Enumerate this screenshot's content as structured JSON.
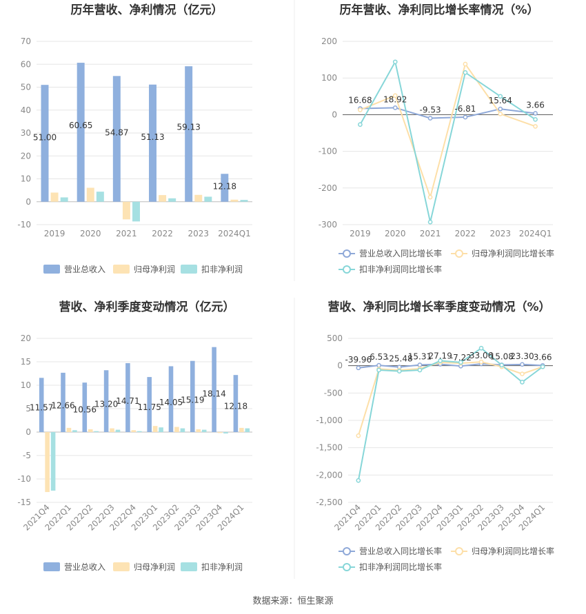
{
  "source_label": "数据来源：恒生聚源",
  "colors": {
    "revenue": "#8fb0de",
    "parent_profit": "#fde3b4",
    "deducted_profit": "#a6e0e2",
    "rev_line": "#8ea8d8",
    "parent_line": "#fddfa8",
    "deducted_line": "#86d6d8"
  },
  "chart_data": [
    {
      "id": "annual-amount",
      "type": "bar",
      "title": "历年营收、净利情况（亿元）",
      "categories": [
        "2019",
        "2020",
        "2021",
        "2022",
        "2023",
        "2024Q1"
      ],
      "series": [
        {
          "name": "营业总收入",
          "values": [
            51.0,
            60.65,
            54.87,
            51.13,
            59.13,
            12.18
          ]
        },
        {
          "name": "归母净利润",
          "values": [
            4.0,
            6.1,
            -7.7,
            2.9,
            3.0,
            0.9
          ]
        },
        {
          "name": "扣非净利润",
          "values": [
            1.9,
            4.4,
            -8.6,
            1.5,
            2.2,
            0.8
          ]
        }
      ],
      "data_labels": [
        "51.00",
        "60.65",
        "54.87",
        "51.13",
        "59.13",
        "12.18"
      ],
      "ylim": [
        -10,
        70
      ],
      "yticks": [
        -10,
        0,
        10,
        20,
        30,
        40,
        50,
        60,
        70
      ],
      "xlabel": "",
      "ylabel": "",
      "legend_position": "bottom"
    },
    {
      "id": "annual-growth",
      "type": "line",
      "title": "历年营收、净利同比增长率情况（%）",
      "categories": [
        "2019",
        "2020",
        "2021",
        "2022",
        "2023",
        "2024Q1"
      ],
      "series": [
        {
          "name": "营业总收入同比增长率",
          "values": [
            16.68,
            18.92,
            -9.53,
            -6.81,
            15.64,
            3.66
          ]
        },
        {
          "name": "归母净利润同比增长率",
          "values": [
            13,
            52,
            -225,
            138,
            2,
            -32
          ]
        },
        {
          "name": "扣非净利润同比增长率",
          "values": [
            -27,
            144,
            -293,
            115,
            50,
            -13
          ]
        }
      ],
      "data_labels": [
        "16.68",
        "18.92",
        "-9.53",
        "-6.81",
        "15.64",
        "3.66"
      ],
      "ylim": [
        -300,
        200
      ],
      "yticks": [
        -300,
        -200,
        -100,
        0,
        100,
        200
      ],
      "xlabel": "",
      "ylabel": "",
      "legend_position": "bottom"
    },
    {
      "id": "quarterly-amount",
      "type": "bar",
      "title": "营收、净利季度变动情况（亿元）",
      "categories": [
        "2021Q4",
        "2022Q1",
        "2022Q2",
        "2022Q3",
        "2022Q4",
        "2023Q1",
        "2023Q2",
        "2023Q3",
        "2023Q4",
        "2024Q1"
      ],
      "series": [
        {
          "name": "营业总收入",
          "values": [
            11.57,
            12.66,
            10.56,
            13.2,
            14.71,
            11.75,
            14.05,
            15.19,
            18.14,
            12.18
          ]
        },
        {
          "name": "归母净利润",
          "values": [
            -12.8,
            0.9,
            0.6,
            0.8,
            0.4,
            1.3,
            1.1,
            0.6,
            -0.2,
            0.9
          ]
        },
        {
          "name": "扣非净利润",
          "values": [
            -12.5,
            0.4,
            0.2,
            0.5,
            0.2,
            1.0,
            0.8,
            0.5,
            -0.3,
            0.8
          ]
        }
      ],
      "data_labels": [
        "11.57",
        "12.66",
        "10.56",
        "13.20",
        "14.71",
        "11.75",
        "14.05",
        "15.19",
        "18.14",
        "12.18"
      ],
      "ylim": [
        -15,
        20
      ],
      "yticks": [
        -15,
        -10,
        -5,
        0,
        5,
        10,
        15,
        20
      ],
      "xlabel": "",
      "ylabel": "",
      "legend_position": "bottom"
    },
    {
      "id": "quarterly-growth",
      "type": "line",
      "title": "营收、净利同比增长率季度变动情况（%）",
      "categories": [
        "2021Q4",
        "2022Q1",
        "2022Q2",
        "2022Q3",
        "2022Q4",
        "2023Q1",
        "2023Q2",
        "2023Q3",
        "2023Q4",
        "2024Q1"
      ],
      "series": [
        {
          "name": "营业总收入同比增长率",
          "values": [
            -39.96,
            6.53,
            -25.48,
            15.31,
            27.19,
            -7.22,
            33.06,
            15.08,
            23.3,
            3.66
          ]
        },
        {
          "name": "归母净利润同比增长率",
          "values": [
            -1280,
            -60,
            -80,
            -55,
            60,
            45,
            70,
            -20,
            -150,
            -20
          ]
        },
        {
          "name": "扣非净利润同比增长率",
          "values": [
            -2100,
            -80,
            -100,
            -80,
            90,
            60,
            320,
            10,
            -300,
            -20
          ]
        }
      ],
      "data_labels": [
        "-39.96",
        "6.53",
        "-25.48",
        "15.31",
        "27.19",
        "-7.22",
        "33.06",
        "15.08",
        "23.30",
        "3.66"
      ],
      "ylim": [
        -2500,
        500
      ],
      "yticks": [
        -2500,
        -2000,
        -1500,
        -1000,
        -500,
        0,
        500
      ],
      "ytick_labels": [
        "-2,500",
        "-2,000",
        "-1,500",
        "-1,000",
        "-500",
        "0",
        "500"
      ],
      "xlabel": "",
      "ylabel": "",
      "legend_position": "bottom"
    }
  ]
}
